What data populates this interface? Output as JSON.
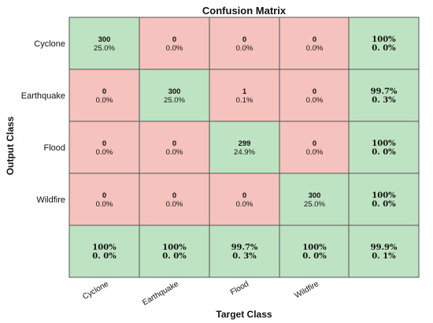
{
  "chart_data": {
    "type": "heatmap",
    "title": "Confusion Matrix",
    "xlabel": "Target Class",
    "ylabel": "Output Class",
    "classes": [
      "Cyclone",
      "Earthquake",
      "Flood",
      "Wildfire"
    ],
    "counts": [
      [
        300,
        0,
        0,
        0
      ],
      [
        0,
        300,
        1,
        0
      ],
      [
        0,
        0,
        299,
        0
      ],
      [
        0,
        0,
        0,
        300
      ]
    ],
    "percents": [
      [
        "25.0%",
        "0.0%",
        "0.0%",
        "0.0%"
      ],
      [
        "0.0%",
        "25.0%",
        "0.1%",
        "0.0%"
      ],
      [
        "0.0%",
        "0.0%",
        "24.9%",
        "0.0%"
      ],
      [
        "0.0%",
        "0.0%",
        "0.0%",
        "25.0%"
      ]
    ],
    "row_summary": [
      [
        "100%",
        "0. 0%"
      ],
      [
        "99.7%",
        "0. 3%"
      ],
      [
        "100%",
        "0. 0%"
      ],
      [
        "100%",
        "0. 0%"
      ]
    ],
    "col_summary": [
      [
        "100%",
        "0. 0%"
      ],
      [
        "100%",
        "0. 0%"
      ],
      [
        "99.7%",
        "0. 3%"
      ],
      [
        "100%",
        "0. 0%"
      ]
    ],
    "overall": [
      "99.9%",
      "0. 1%"
    ],
    "colors": {
      "correct": "#bde3c2",
      "incorrect": "#f5c2bd",
      "border": "#555555"
    }
  }
}
